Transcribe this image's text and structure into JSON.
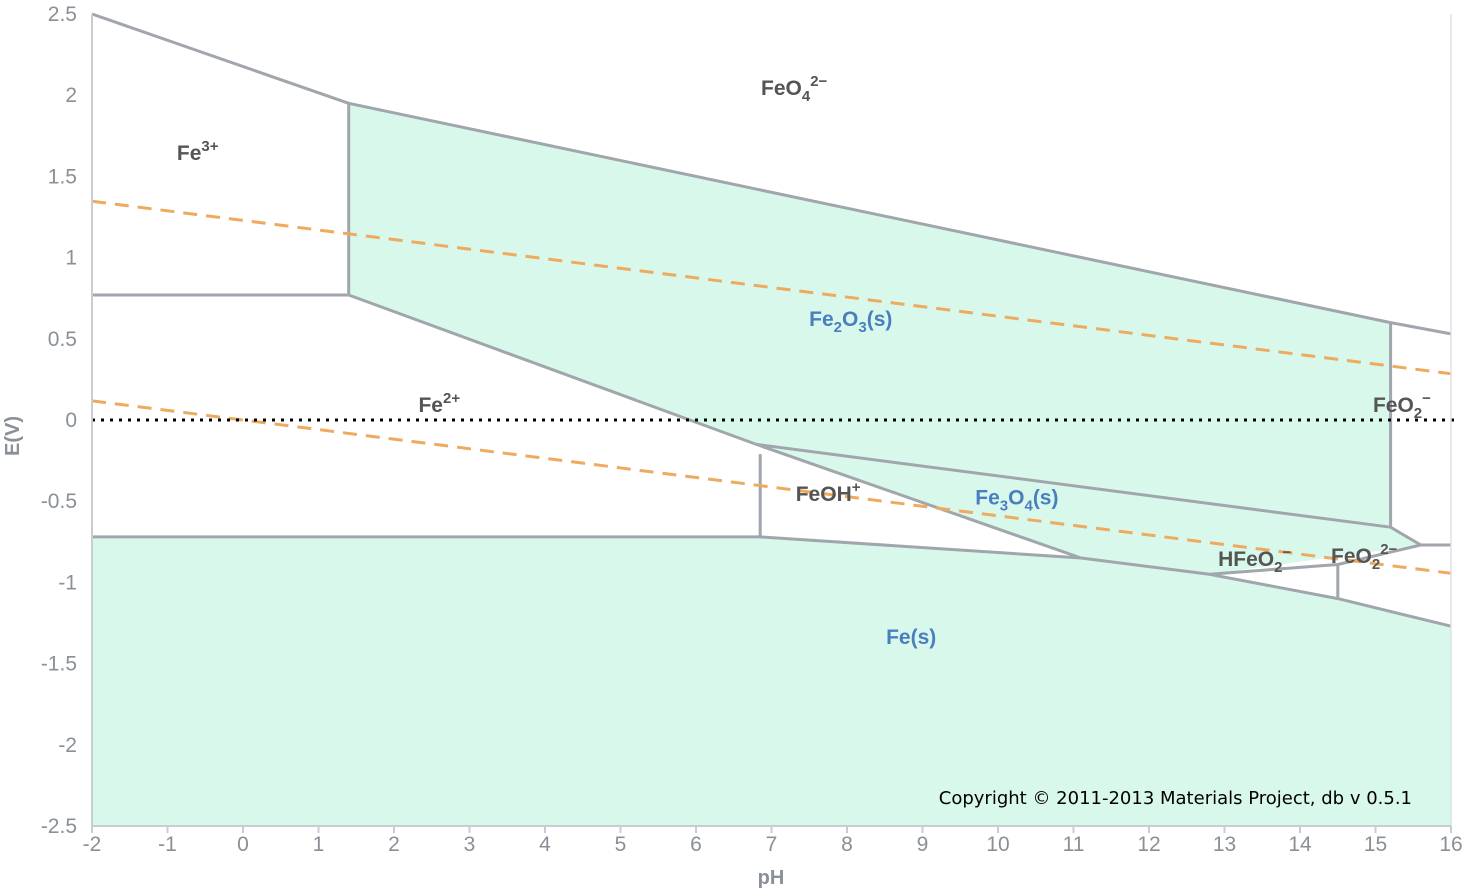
{
  "chart_data": {
    "type": "area",
    "xlabel": "pH",
    "ylabel": "E(V)",
    "xlim": [
      -2,
      16
    ],
    "ylim": [
      -2.5,
      2.5
    ],
    "xticks": [
      "-2",
      "-1",
      "0",
      "1",
      "2",
      "3",
      "4",
      "5",
      "6",
      "7",
      "8",
      "9",
      "10",
      "11",
      "12",
      "13",
      "14",
      "15",
      "16"
    ],
    "yticks": [
      "2.5",
      "2",
      "1.5",
      "1",
      "0.5",
      "0",
      "-0.5",
      "-1",
      "-1.5",
      "-2",
      "-2.5"
    ],
    "grid": false,
    "colors": {
      "solid_fill": "#d9f8ec",
      "boundary": "#a0a6ab",
      "water_line": "#eeaa5e",
      "zero_line": "#000000",
      "axis_text": "#8a9097",
      "ion_label": "#555555",
      "solid_label": "#4a7fbf"
    },
    "solid_regions": [
      {
        "name": "Fe2O3(s)",
        "points": [
          [
            1.4,
            1.95
          ],
          [
            15.2,
            0.6
          ],
          [
            15.2,
            -0.66
          ],
          [
            6.8,
            -0.15
          ],
          [
            1.4,
            0.77
          ]
        ]
      },
      {
        "name": "Fe3O4(s)",
        "points": [
          [
            6.8,
            -0.15
          ],
          [
            15.2,
            -0.66
          ],
          [
            15.6,
            -0.77
          ],
          [
            12.8,
            -0.95
          ],
          [
            11.1,
            -0.85
          ]
        ]
      },
      {
        "name": "Fe(s)",
        "points": [
          [
            -2,
            -0.72
          ],
          [
            6.85,
            -0.72
          ],
          [
            11.1,
            -0.85
          ],
          [
            12.8,
            -0.95
          ],
          [
            14.5,
            -1.1
          ],
          [
            16,
            -1.27
          ],
          [
            16,
            -2.5
          ],
          [
            -2,
            -2.5
          ]
        ]
      }
    ],
    "boundary_lines": [
      [
        [
          -2,
          2.5
        ],
        [
          1.4,
          1.95
        ],
        [
          15.2,
          0.6
        ],
        [
          16,
          0.53
        ]
      ],
      [
        [
          1.4,
          1.95
        ],
        [
          1.4,
          0.77
        ]
      ],
      [
        [
          -2,
          0.77
        ],
        [
          1.4,
          0.77
        ]
      ],
      [
        [
          1.4,
          0.77
        ],
        [
          6.8,
          -0.15
        ],
        [
          11.1,
          -0.85
        ]
      ],
      [
        [
          6.8,
          -0.15
        ],
        [
          15.2,
          -0.66
        ],
        [
          15.6,
          -0.77
        ],
        [
          16,
          -0.77
        ]
      ],
      [
        [
          6.85,
          -0.21
        ],
        [
          6.85,
          -0.72
        ]
      ],
      [
        [
          -2,
          -0.72
        ],
        [
          6.85,
          -0.72
        ],
        [
          11.1,
          -0.85
        ],
        [
          12.8,
          -0.95
        ],
        [
          14.5,
          -1.1
        ],
        [
          16,
          -1.27
        ]
      ],
      [
        [
          12.8,
          -0.95
        ],
        [
          14.5,
          -0.89
        ],
        [
          15.6,
          -0.77
        ]
      ],
      [
        [
          15.2,
          0.6
        ],
        [
          15.2,
          -0.66
        ]
      ],
      [
        [
          14.5,
          -0.89
        ],
        [
          14.5,
          -1.1
        ]
      ]
    ],
    "water_lines": [
      {
        "x": [
          -2,
          16
        ],
        "y": [
          1.347,
          0.285
        ]
      },
      {
        "x": [
          -2,
          16
        ],
        "y": [
          0.118,
          -0.944
        ]
      }
    ],
    "zero_line": {
      "y": 0
    },
    "region_labels": [
      {
        "text": "FeO",
        "sub": "4",
        "sup": "2−",
        "x": 7.3,
        "y": 2.0,
        "kind": "ion"
      },
      {
        "text": "Fe",
        "sub": "",
        "sup": "3+",
        "x": -0.6,
        "y": 1.6,
        "kind": "ion"
      },
      {
        "text": "Fe",
        "sub": "",
        "sup": "2+",
        "x": 2.6,
        "y": 0.05,
        "kind": "ion"
      },
      {
        "text": "FeO",
        "sub": "2",
        "sup": "−",
        "x": 15.35,
        "y": 0.05,
        "kind": "ion"
      },
      {
        "text": "FeOH",
        "sub": "",
        "sup": "+",
        "x": 7.75,
        "y": -0.5,
        "kind": "ion"
      },
      {
        "text": "HFeO",
        "sub": "2",
        "sup": "−",
        "x": 13.4,
        "y": -0.9,
        "kind": "ion"
      },
      {
        "text": "FeO",
        "sub": "2",
        "sup": "2−",
        "x": 14.85,
        "y": -0.88,
        "kind": "ion"
      },
      {
        "text": "Fe",
        "sub": "2",
        "text2": "O",
        "sub2": "3",
        "tail": "(s)",
        "x": 8.05,
        "y": 0.58,
        "kind": "solid"
      },
      {
        "text": "Fe",
        "sub": "3",
        "text2": "O",
        "sub2": "4",
        "tail": "(s)",
        "x": 10.25,
        "y": -0.52,
        "kind": "solid"
      },
      {
        "text": "Fe(s)",
        "sub": "",
        "sup": "",
        "x": 8.85,
        "y": -1.38,
        "kind": "solid"
      }
    ]
  },
  "copyright": "Copyright © 2011-2013 Materials Project, db v 0.5.1"
}
